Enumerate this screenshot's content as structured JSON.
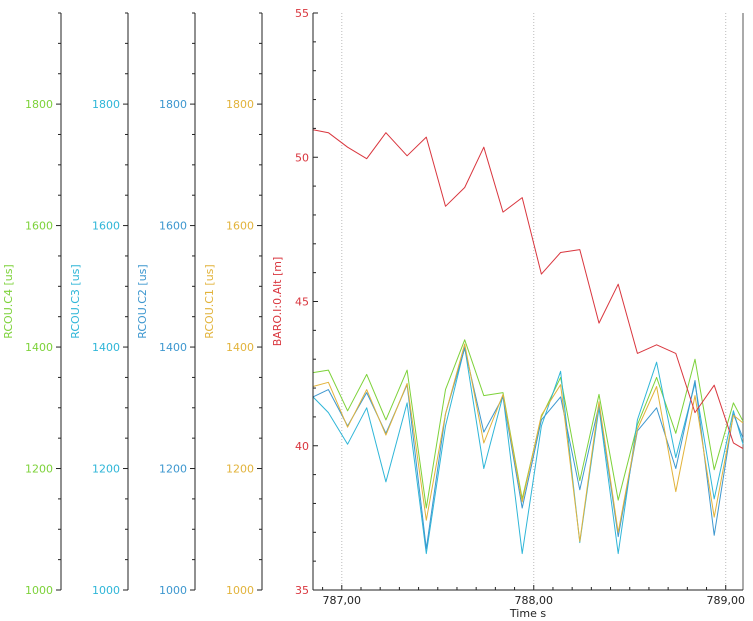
{
  "chart_data": {
    "type": "line",
    "xlabel": "Time s",
    "xlim": [
      786.85,
      789.09
    ],
    "x_ticks": [
      787.0,
      788.0,
      789.0
    ],
    "x_tick_labels": [
      "787,00",
      "788,00",
      "789,00"
    ],
    "grid": "vertical dotted lines at x ticks",
    "x": [
      786.85,
      786.93,
      787.03,
      787.13,
      787.23,
      787.34,
      787.44,
      787.54,
      787.64,
      787.74,
      787.84,
      787.94,
      788.04,
      788.14,
      788.24,
      788.34,
      788.44,
      788.54,
      788.64,
      788.74,
      788.84,
      788.94,
      789.04,
      789.09
    ],
    "left_axes": [
      {
        "label": "RCOU.C4 [us]",
        "color": "#7dd23a",
        "ylim": [
          1000,
          1950
        ],
        "ticks": [
          1000,
          1200,
          1400,
          1600,
          1800
        ]
      },
      {
        "label": "RCOU.C3 [us]",
        "color": "#2fb6d8",
        "ylim": [
          1000,
          1950
        ],
        "ticks": [
          1000,
          1200,
          1400,
          1600,
          1800
        ]
      },
      {
        "label": "RCOU.C2 [us]",
        "color": "#3d97cf",
        "ylim": [
          1000,
          1950
        ],
        "ticks": [
          1000,
          1200,
          1400,
          1600,
          1800
        ]
      },
      {
        "label": "RCOU.C1 [us]",
        "color": "#e2b33b",
        "ylim": [
          1000,
          1950
        ],
        "ticks": [
          1000,
          1200,
          1400,
          1600,
          1800
        ]
      }
    ],
    "right_axis": {
      "label": "BARO.I:0.Alt [m]",
      "color": "#d9363e",
      "ylim": [
        35,
        55
      ],
      "ticks": [
        35,
        40,
        45,
        50,
        55
      ]
    },
    "series": [
      {
        "name": "RCOU.C4 [us]",
        "axis": 0,
        "color": "#7dd23a",
        "values": [
          1358,
          1362,
          1295,
          1355,
          1280,
          1362,
          1135,
          1330,
          1412,
          1320,
          1325,
          1150,
          1285,
          1350,
          1180,
          1322,
          1148,
          1272,
          1350,
          1258,
          1380,
          1198,
          1308,
          1278
        ]
      },
      {
        "name": "RCOU.C3 [us]",
        "axis": 1,
        "color": "#2fb6d8",
        "values": [
          1318,
          1292,
          1240,
          1300,
          1178,
          1308,
          1060,
          1270,
          1400,
          1200,
          1320,
          1060,
          1270,
          1360,
          1078,
          1300,
          1060,
          1280,
          1375,
          1218,
          1340,
          1150,
          1295,
          1240
        ]
      },
      {
        "name": "RCOU.C2 [us]",
        "axis": 2,
        "color": "#3d97cf",
        "values": [
          1318,
          1330,
          1270,
          1325,
          1258,
          1338,
          1068,
          1290,
          1398,
          1260,
          1318,
          1135,
          1280,
          1318,
          1165,
          1305,
          1088,
          1262,
          1300,
          1200,
          1345,
          1090,
          1290,
          1250
        ]
      },
      {
        "name": "RCOU.C1 [us]",
        "axis": 3,
        "color": "#e2b33b",
        "values": [
          1335,
          1342,
          1268,
          1330,
          1255,
          1340,
          1115,
          1290,
          1405,
          1242,
          1322,
          1145,
          1288,
          1338,
          1080,
          1310,
          1095,
          1265,
          1335,
          1162,
          1320,
          1120,
          1288,
          1275
        ]
      },
      {
        "name": "BARO.I:0.Alt [m]",
        "axis": "right",
        "color": "#d9363e",
        "values": [
          50.95,
          50.85,
          50.35,
          49.95,
          50.85,
          50.05,
          50.7,
          48.3,
          48.95,
          50.35,
          48.1,
          48.6,
          45.95,
          46.7,
          46.8,
          44.25,
          45.6,
          43.2,
          43.5,
          43.2,
          41.15,
          42.1,
          40.1,
          39.9
        ]
      }
    ]
  }
}
